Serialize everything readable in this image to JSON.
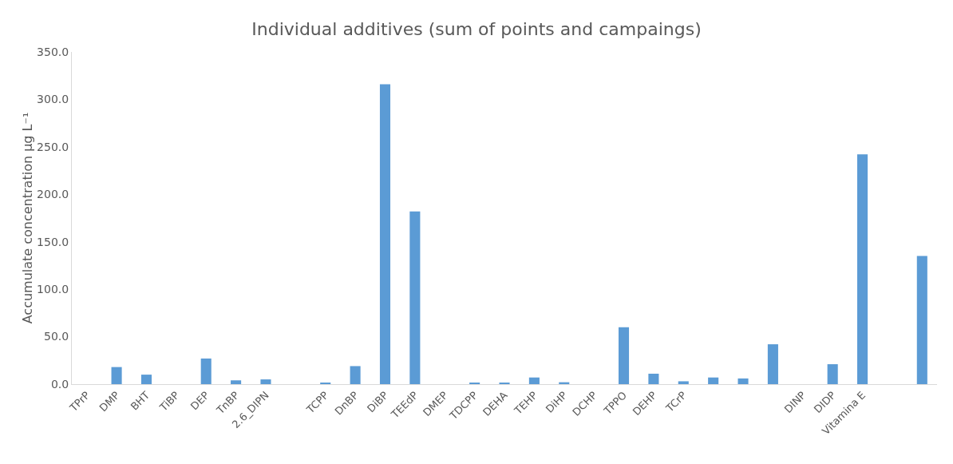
{
  "chart_data": {
    "type": "bar",
    "title": "Individual additives (sum of points and campaings)",
    "ylabel": "Accumulate concentration µg L⁻¹",
    "categories": [
      "TPrP",
      "DMP",
      "BHT",
      "TiBP",
      "DEP",
      "TnBP",
      "2.6_DIPN",
      null,
      "TCPP",
      "DnBP",
      "DiBP",
      "TEEdP",
      "DMEP",
      "TDCPP",
      "DEHA",
      "TEHP",
      "DiHP",
      "DCHP",
      "TPPO",
      "DEHP",
      "TCrP",
      null,
      null,
      null,
      "DINP",
      "DIDP",
      "Vitamina E",
      null,
      null
    ],
    "values": [
      0,
      18,
      10,
      0,
      27,
      4,
      5,
      0,
      1,
      19,
      316,
      182,
      0,
      1,
      1,
      7,
      2,
      0,
      60,
      11,
      3,
      7,
      6,
      42,
      0,
      21,
      242,
      0,
      135
    ],
    "color": "#5b9bd5",
    "ylim": [
      0,
      350
    ],
    "yticks": [
      {
        "value": 0,
        "label": "0.0"
      },
      {
        "value": 50,
        "label": "50.0"
      },
      {
        "value": 100,
        "label": "100.0"
      },
      {
        "value": 150,
        "label": "150.0"
      },
      {
        "value": 200,
        "label": "200.0"
      },
      {
        "value": 250,
        "label": "250.0"
      },
      {
        "value": 300,
        "label": "300.0"
      },
      {
        "value": 350,
        "label": "350.0"
      }
    ],
    "grid": false
  }
}
